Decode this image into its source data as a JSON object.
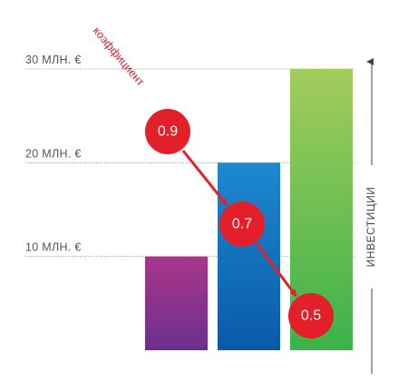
{
  "chart_data": {
    "type": "bar",
    "categories": [
      "",
      "",
      ""
    ],
    "values": [
      10,
      20,
      30
    ],
    "ylim": [
      0,
      30
    ],
    "yticks": [
      {
        "value": 10,
        "label": "10 МЛН. €"
      },
      {
        "value": 20,
        "label": "20 МЛН. €"
      },
      {
        "value": 30,
        "label": "30 МЛН. €"
      }
    ],
    "y_axis_label": "ИНВЕСТИЦИИ",
    "grid": "dotted lines at tick values",
    "bar_colors": [
      {
        "top": "#a8368c",
        "bottom": "#6b2f8e"
      },
      {
        "top": "#1e88d0",
        "bottom": "#0a5aa8"
      },
      {
        "top": "#a3cc5c",
        "bottom": "#3bb24a"
      }
    ],
    "coefficient_label": "коэффициент",
    "coefficients": [
      "0.9",
      "0.7",
      "0.5"
    ],
    "accent_color": "#e3202a"
  }
}
